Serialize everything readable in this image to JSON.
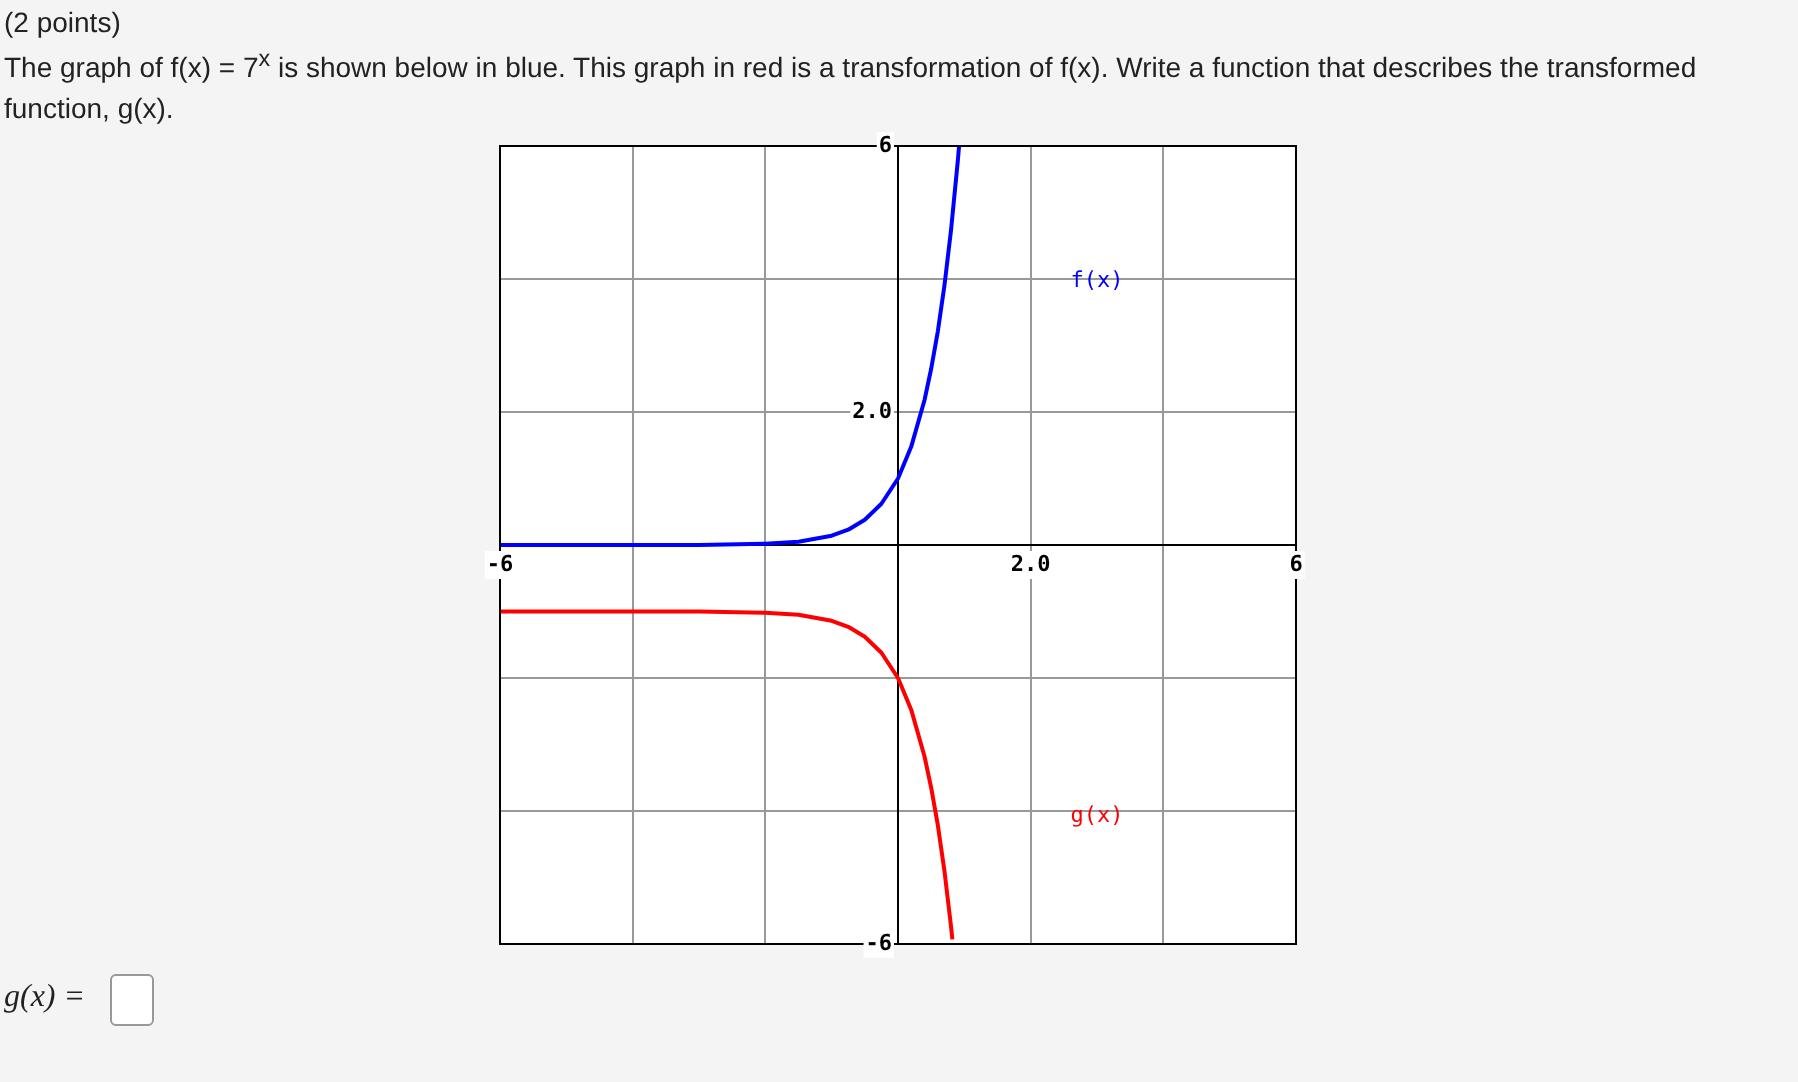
{
  "chart_data": {
    "type": "line",
    "subtitle": "(2 points)",
    "title": "The graph of f(x) = 7$^{x}$ is shown below in blue. This graph in red is a transformation of f(x). Write a function that describes the transformed function, g(x).",
    "series": [
      {
        "color": "#0000ff",
        "x": [
          -6,
          -4,
          -3,
          -2,
          -1.5,
          -1,
          -0.75,
          -0.5,
          -0.25,
          0,
          0.2,
          0.4,
          0.5,
          0.6,
          0.7,
          0.8,
          0.9,
          0.92
        ],
        "values": [
          0,
          0,
          0,
          0.02,
          0.05,
          0.14,
          0.23,
          0.38,
          0.62,
          1,
          1.48,
          2.18,
          2.65,
          3.21,
          3.9,
          4.74,
          5.76,
          5.99
        ]
      },
      {
        "color": "#ff0000",
        "x": [
          -6,
          -4,
          -3,
          -2,
          -1.5,
          -1,
          -0.75,
          -0.5,
          -0.25,
          0,
          0.2,
          0.4,
          0.5,
          0.6,
          0.7,
          0.8,
          0.82
        ],
        "values": [
          -1,
          -1,
          -1,
          -1.02,
          -1.05,
          -1.14,
          -1.23,
          -1.38,
          -1.62,
          -2,
          -2.48,
          -3.18,
          -3.65,
          -4.21,
          -4.9,
          -5.74,
          -5.93
        ]
      }
    ],
    "xlim": [
      -6,
      6
    ],
    "ylim": [
      -6,
      6
    ],
    "xticks": [
      -6,
      {
        "value": -4,
        "label": null
      },
      {
        "value": -2,
        "label": null
      },
      {
        "value": 0,
        "label": null
      },
      {
        "value": 2,
        "label": "2.0"
      },
      {
        "value": 4,
        "label": null
      },
      6
    ],
    "yticks": [
      -6,
      {
        "value": -4,
        "label": null
      },
      {
        "value": -2,
        "label": null
      },
      {
        "value": 0,
        "label": null
      },
      {
        "value": 2,
        "label": "2.0"
      },
      {
        "value": 4,
        "label": null
      },
      6
    ],
    "grid": true,
    "marker": "none",
    "line_style": "solid",
    "annotations": [
      "f(x)",
      "g(x)",
      "g(x) ="
    ]
  }
}
